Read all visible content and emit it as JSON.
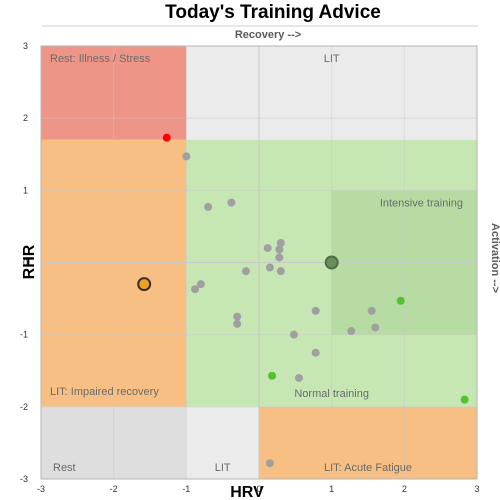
{
  "chart_data": {
    "type": "scatter",
    "title": "Today's Training Advice",
    "xlabel": "HRV",
    "ylabel": "RHR",
    "x_direction_label": "Recovery -->",
    "y_direction_label": "Activation -->",
    "xlim": [
      -3,
      3
    ],
    "ylim": [
      -3,
      3
    ],
    "x_ticks": [
      "-3",
      "-2",
      "-1",
      "0",
      "1",
      "2",
      "3"
    ],
    "y_ticks": [
      "3",
      "2",
      "1",
      "0",
      "-1",
      "-2",
      "-3"
    ],
    "grid": true,
    "zones": [
      {
        "label": "Rest: Illness / Stress",
        "x": [
          -3,
          -1
        ],
        "y": [
          1.7,
          3
        ],
        "color": "#ee9587"
      },
      {
        "label": "LIT",
        "x": [
          -1,
          3
        ],
        "y": [
          1.7,
          3
        ],
        "color": "#ebebeb"
      },
      {
        "label": "LIT: Impaired recovery",
        "x": [
          -3,
          -1
        ],
        "y": [
          -2,
          1.7
        ],
        "color": "#f7bf83"
      },
      {
        "label": "Normal training",
        "x": [
          -1,
          3
        ],
        "y": [
          -2,
          1.7
        ],
        "color": "#c6e6b4"
      },
      {
        "label": "Intensive training",
        "x": [
          1,
          3
        ],
        "y": [
          -1,
          1
        ],
        "color": "#b7dca3"
      },
      {
        "label": "Rest",
        "x": [
          -3,
          -1
        ],
        "y": [
          -3,
          -2
        ],
        "color": "#dedede"
      },
      {
        "label": "LIT",
        "x": [
          -1,
          0
        ],
        "y": [
          -3,
          -2
        ],
        "color": "#ebebeb"
      },
      {
        "label": "LIT: Acute Fatigue",
        "x": [
          0,
          3
        ],
        "y": [
          -3,
          -2
        ],
        "color": "#f7bf83"
      }
    ],
    "series": [
      {
        "color": "#a0a0a0",
        "points": [
          [
            -1.0,
            1.47
          ],
          [
            -0.7,
            0.77
          ],
          [
            -0.38,
            0.83
          ],
          [
            -0.8,
            -0.3
          ],
          [
            -0.88,
            -0.37
          ],
          [
            -0.18,
            -0.12
          ],
          [
            -0.3,
            -0.75
          ],
          [
            -0.3,
            -0.85
          ],
          [
            0.12,
            0.2
          ],
          [
            0.3,
            0.27
          ],
          [
            0.28,
            0.18
          ],
          [
            0.28,
            0.07
          ],
          [
            0.15,
            -0.07
          ],
          [
            0.3,
            -0.12
          ],
          [
            0.48,
            -1.0
          ],
          [
            0.78,
            -0.67
          ],
          [
            0.78,
            -1.25
          ],
          [
            1.27,
            -0.95
          ],
          [
            1.55,
            -0.67
          ],
          [
            1.6,
            -0.9
          ],
          [
            0.55,
            -1.6
          ],
          [
            0.15,
            -2.78
          ]
        ]
      },
      {
        "color": "#52c22e",
        "points": [
          [
            1.95,
            -0.53
          ],
          [
            0.18,
            -1.57
          ],
          [
            2.83,
            -1.9
          ]
        ]
      },
      {
        "color": "#ff0000",
        "points": [
          [
            -1.27,
            1.73
          ]
        ]
      },
      {
        "color": "#f0a020",
        "outline": "#333333",
        "points": [
          [
            -1.58,
            -0.3
          ]
        ]
      },
      {
        "color": "#6b8e5a",
        "outline": "#4f6f44",
        "points": [
          [
            1.0,
            0.0
          ]
        ]
      }
    ]
  }
}
